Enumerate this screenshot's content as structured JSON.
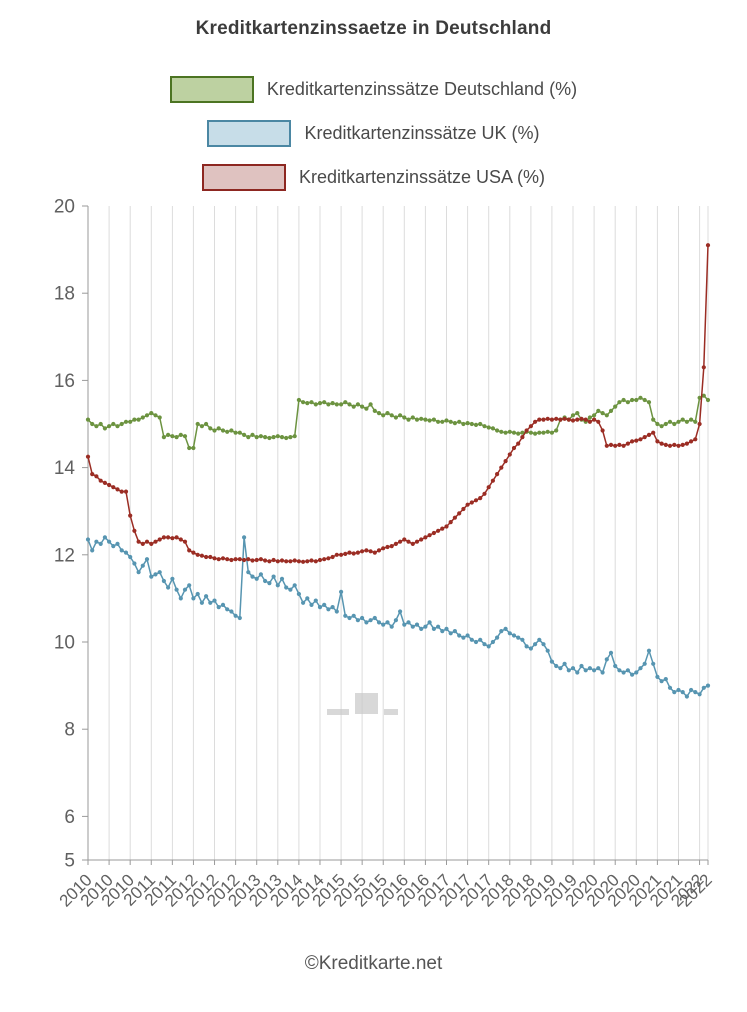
{
  "footer": {
    "text": "©Kreditkarte.net"
  },
  "chart_data": {
    "type": "line",
    "title": "Kreditkartenzinssaetze in Deutschland",
    "x_unit": "monthly, Jan 2010 - Apr 2022",
    "ylim": [
      5,
      20
    ],
    "y_ticks": [
      5,
      6,
      8,
      10,
      12,
      14,
      16,
      18,
      20
    ],
    "grid": "vertical-only",
    "legend_position": "top",
    "colors": {
      "grid": "#dcdcdc",
      "axis": "#9a9a9a",
      "tick_text": "#606060"
    },
    "x_ticks": [
      {
        "i": 0,
        "label": "2010"
      },
      {
        "i": 5,
        "label": "2010"
      },
      {
        "i": 10,
        "label": "2010"
      },
      {
        "i": 15,
        "label": "2011"
      },
      {
        "i": 20,
        "label": "2011"
      },
      {
        "i": 25,
        "label": "2012"
      },
      {
        "i": 30,
        "label": "2012"
      },
      {
        "i": 35,
        "label": "2012"
      },
      {
        "i": 40,
        "label": "2013"
      },
      {
        "i": 45,
        "label": "2013"
      },
      {
        "i": 50,
        "label": "2014"
      },
      {
        "i": 55,
        "label": "2014"
      },
      {
        "i": 60,
        "label": "2015"
      },
      {
        "i": 65,
        "label": "2015"
      },
      {
        "i": 70,
        "label": "2015"
      },
      {
        "i": 75,
        "label": "2016"
      },
      {
        "i": 80,
        "label": "2016"
      },
      {
        "i": 85,
        "label": "2017"
      },
      {
        "i": 90,
        "label": "2017"
      },
      {
        "i": 95,
        "label": "2017"
      },
      {
        "i": 100,
        "label": "2018"
      },
      {
        "i": 105,
        "label": "2018"
      },
      {
        "i": 110,
        "label": "2019"
      },
      {
        "i": 115,
        "label": "2019"
      },
      {
        "i": 120,
        "label": "2020"
      },
      {
        "i": 125,
        "label": "2020"
      },
      {
        "i": 130,
        "label": "2020"
      },
      {
        "i": 135,
        "label": "2021"
      },
      {
        "i": 140,
        "label": "2021"
      },
      {
        "i": 145,
        "label": "2022"
      },
      {
        "i": 147,
        "label": "2022"
      }
    ],
    "series": [
      {
        "id": "deutschland",
        "label": "Kreditkartenzinssätze Deutschland (%)",
        "color": "#6c9340",
        "swatch_fill": "#bdd1a1",
        "swatch_border": "#4c7422",
        "values": [
          15.1,
          15.0,
          14.95,
          15.0,
          14.9,
          14.95,
          15.0,
          14.95,
          15.0,
          15.05,
          15.05,
          15.1,
          15.1,
          15.15,
          15.2,
          15.25,
          15.2,
          15.15,
          14.7,
          14.75,
          14.72,
          14.7,
          14.75,
          14.72,
          14.45,
          14.45,
          15.0,
          14.95,
          15.0,
          14.9,
          14.85,
          14.9,
          14.85,
          14.82,
          14.85,
          14.8,
          14.8,
          14.75,
          14.7,
          14.75,
          14.7,
          14.72,
          14.7,
          14.68,
          14.7,
          14.72,
          14.7,
          14.68,
          14.7,
          14.72,
          15.55,
          15.5,
          15.48,
          15.5,
          15.45,
          15.48,
          15.5,
          15.45,
          15.48,
          15.45,
          15.45,
          15.5,
          15.45,
          15.4,
          15.45,
          15.4,
          15.35,
          15.45,
          15.3,
          15.25,
          15.2,
          15.25,
          15.2,
          15.15,
          15.2,
          15.15,
          15.1,
          15.15,
          15.1,
          15.12,
          15.1,
          15.08,
          15.1,
          15.05,
          15.05,
          15.08,
          15.05,
          15.02,
          15.05,
          15.0,
          15.02,
          15.0,
          14.98,
          15.0,
          14.95,
          14.92,
          14.9,
          14.85,
          14.82,
          14.8,
          14.82,
          14.8,
          14.78,
          14.8,
          14.82,
          14.8,
          14.78,
          14.8,
          14.8,
          14.82,
          14.8,
          14.85,
          15.1,
          15.15,
          15.1,
          15.2,
          15.25,
          15.1,
          15.05,
          15.15,
          15.2,
          15.3,
          15.25,
          15.2,
          15.3,
          15.4,
          15.5,
          15.55,
          15.5,
          15.55,
          15.55,
          15.6,
          15.55,
          15.5,
          15.1,
          15.0,
          14.95,
          15.0,
          15.05,
          15.0,
          15.05,
          15.1,
          15.05,
          15.1,
          15.05,
          15.6,
          15.65,
          15.55
        ]
      },
      {
        "id": "uk",
        "label": "Kreditkartenzinssätze UK (%)",
        "color": "#5795b1",
        "swatch_fill": "#c7dde8",
        "swatch_border": "#4b87a3",
        "values": [
          12.35,
          12.1,
          12.3,
          12.25,
          12.4,
          12.3,
          12.2,
          12.25,
          12.1,
          12.05,
          11.95,
          11.8,
          11.6,
          11.75,
          11.9,
          11.5,
          11.55,
          11.6,
          11.4,
          11.25,
          11.45,
          11.2,
          11.0,
          11.2,
          11.3,
          11.0,
          11.1,
          10.9,
          11.05,
          10.9,
          10.95,
          10.8,
          10.85,
          10.75,
          10.7,
          10.6,
          10.55,
          12.4,
          11.6,
          11.5,
          11.45,
          11.55,
          11.4,
          11.35,
          11.5,
          11.3,
          11.45,
          11.25,
          11.2,
          11.3,
          11.1,
          10.9,
          11.0,
          10.85,
          10.95,
          10.8,
          10.85,
          10.75,
          10.8,
          10.7,
          11.15,
          10.6,
          10.55,
          10.6,
          10.5,
          10.55,
          10.45,
          10.5,
          10.55,
          10.45,
          10.4,
          10.45,
          10.35,
          10.5,
          10.7,
          10.4,
          10.45,
          10.35,
          10.4,
          10.3,
          10.35,
          10.45,
          10.3,
          10.35,
          10.25,
          10.3,
          10.2,
          10.25,
          10.15,
          10.1,
          10.15,
          10.05,
          10.0,
          10.05,
          9.95,
          9.9,
          10.0,
          10.1,
          10.25,
          10.3,
          10.2,
          10.15,
          10.1,
          10.05,
          9.9,
          9.85,
          9.95,
          10.05,
          9.95,
          9.8,
          9.55,
          9.45,
          9.4,
          9.5,
          9.35,
          9.4,
          9.3,
          9.45,
          9.35,
          9.4,
          9.35,
          9.4,
          9.3,
          9.6,
          9.75,
          9.45,
          9.35,
          9.3,
          9.35,
          9.25,
          9.3,
          9.4,
          9.5,
          9.8,
          9.5,
          9.2,
          9.1,
          9.15,
          8.95,
          8.85,
          8.9,
          8.85,
          8.75,
          8.9,
          8.85,
          8.8,
          8.95,
          9.0
        ]
      },
      {
        "id": "usa",
        "label": "Kreditkartenzinssätze USA (%)",
        "color": "#9b2d24",
        "swatch_fill": "#dfc2c0",
        "swatch_border": "#8d2721",
        "values": [
          14.25,
          13.85,
          13.8,
          13.7,
          13.65,
          13.6,
          13.55,
          13.5,
          13.45,
          13.45,
          12.9,
          12.55,
          12.3,
          12.25,
          12.3,
          12.25,
          12.3,
          12.35,
          12.4,
          12.4,
          12.38,
          12.4,
          12.35,
          12.3,
          12.1,
          12.05,
          12.0,
          11.98,
          11.95,
          11.95,
          11.92,
          11.9,
          11.92,
          11.9,
          11.88,
          11.9,
          11.9,
          11.88,
          11.9,
          11.87,
          11.88,
          11.9,
          11.87,
          11.85,
          11.88,
          11.85,
          11.87,
          11.85,
          11.85,
          11.87,
          11.85,
          11.84,
          11.85,
          11.87,
          11.85,
          11.88,
          11.9,
          11.92,
          11.95,
          12.0,
          12.0,
          12.02,
          12.05,
          12.03,
          12.05,
          12.08,
          12.1,
          12.08,
          12.05,
          12.1,
          12.15,
          12.18,
          12.2,
          12.25,
          12.3,
          12.35,
          12.3,
          12.25,
          12.3,
          12.35,
          12.4,
          12.45,
          12.5,
          12.55,
          12.6,
          12.65,
          12.75,
          12.85,
          12.95,
          13.05,
          13.15,
          13.2,
          13.25,
          13.3,
          13.4,
          13.55,
          13.7,
          13.85,
          14.0,
          14.15,
          14.3,
          14.45,
          14.55,
          14.7,
          14.85,
          14.95,
          15.05,
          15.1,
          15.1,
          15.12,
          15.1,
          15.12,
          15.1,
          15.12,
          15.1,
          15.08,
          15.1,
          15.12,
          15.1,
          15.05,
          15.1,
          15.05,
          14.85,
          14.5,
          14.52,
          14.5,
          14.52,
          14.5,
          14.55,
          14.6,
          14.62,
          14.65,
          14.7,
          14.75,
          14.8,
          14.6,
          14.55,
          14.52,
          14.5,
          14.52,
          14.5,
          14.52,
          14.55,
          14.6,
          14.65,
          15.0,
          16.3,
          19.1
        ]
      }
    ]
  }
}
